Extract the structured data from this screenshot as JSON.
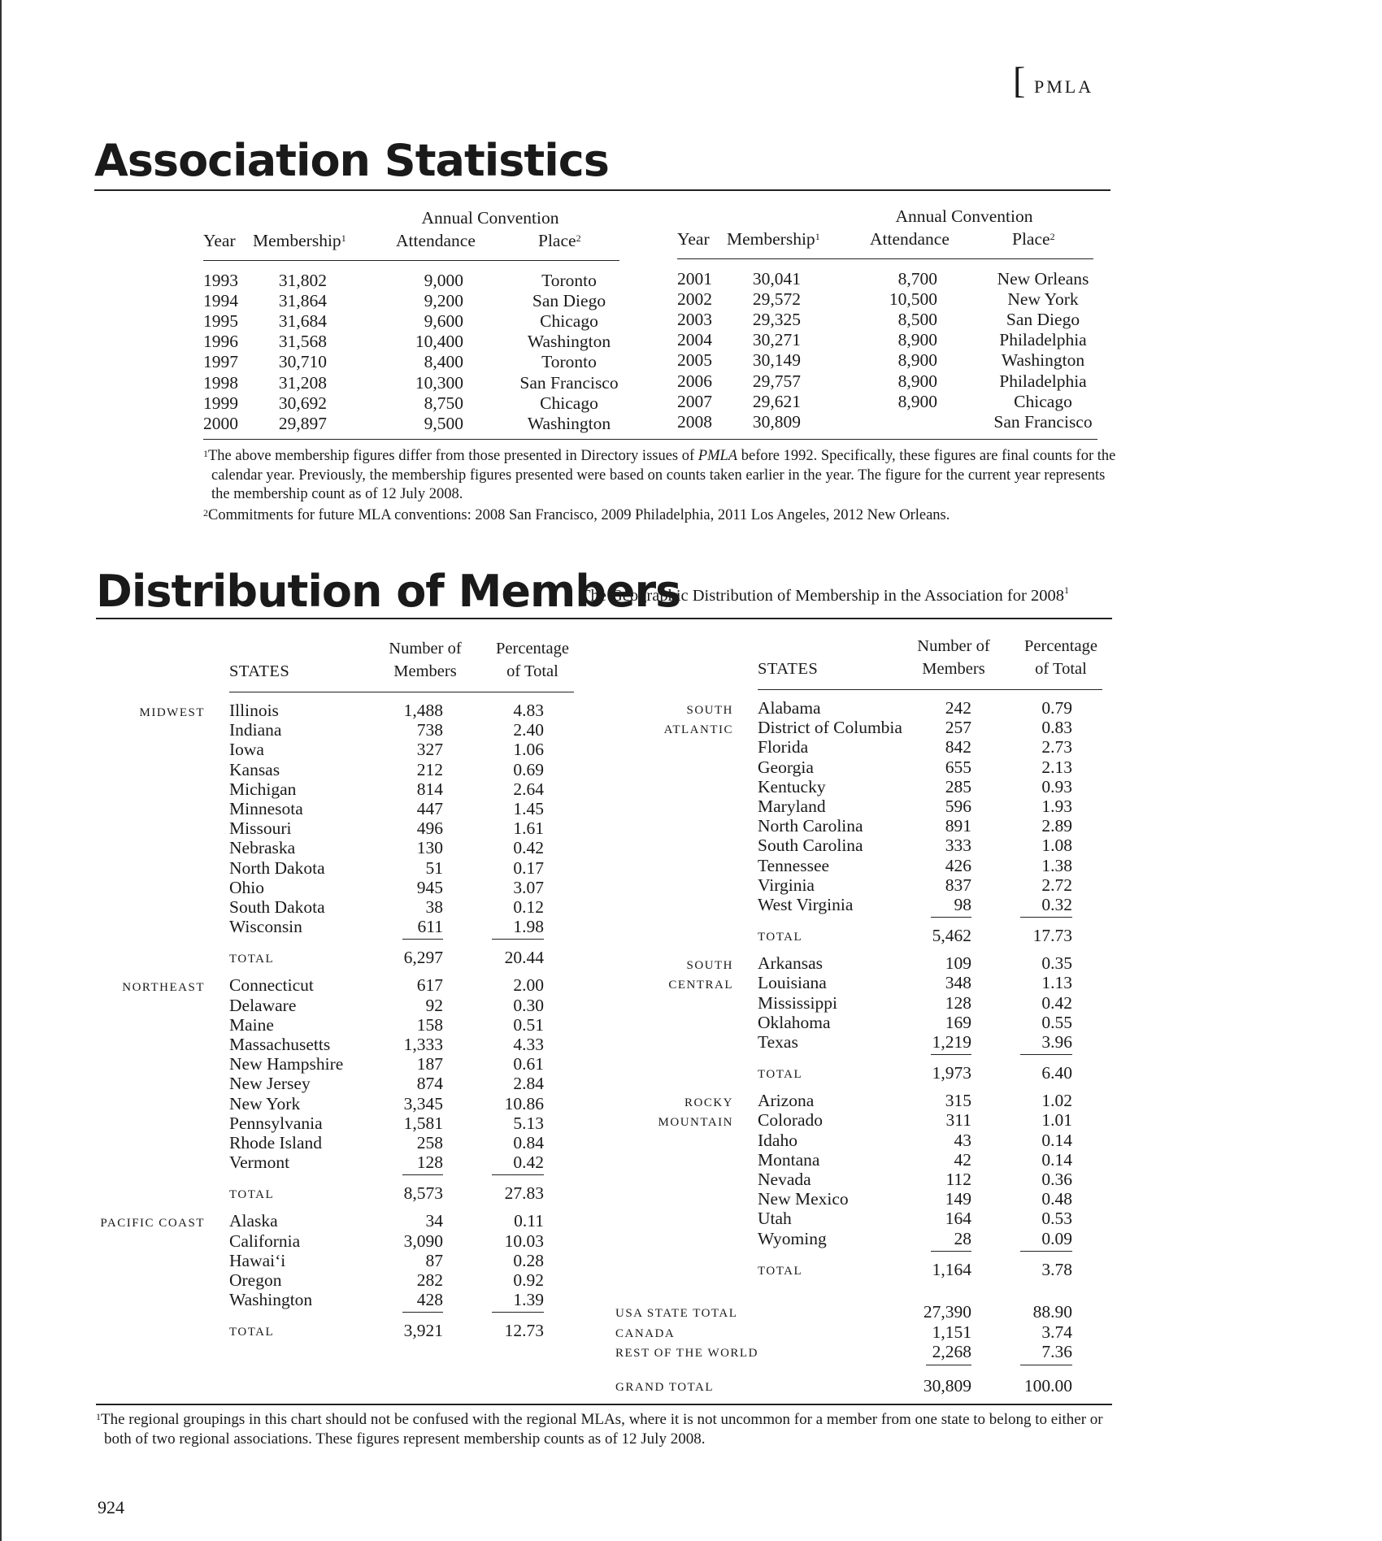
{
  "journal": "PMLA",
  "stats": {
    "title": "Association Statistics",
    "headers": {
      "year": "Year",
      "membership": "Membership",
      "membership_note": "1",
      "annual_convention": "Annual Convention",
      "attendance": "Attendance",
      "place": "Place",
      "place_note": "2"
    },
    "rows_left": [
      {
        "year": "1993",
        "membership": "31,802",
        "attendance": "9,000",
        "place": "Toronto"
      },
      {
        "year": "1994",
        "membership": "31,864",
        "attendance": "9,200",
        "place": "San Diego"
      },
      {
        "year": "1995",
        "membership": "31,684",
        "attendance": "9,600",
        "place": "Chicago"
      },
      {
        "year": "1996",
        "membership": "31,568",
        "attendance": "10,400",
        "place": "Washington"
      },
      {
        "year": "1997",
        "membership": "30,710",
        "attendance": "8,400",
        "place": "Toronto"
      },
      {
        "year": "1998",
        "membership": "31,208",
        "attendance": "10,300",
        "place": "San Francisco"
      },
      {
        "year": "1999",
        "membership": "30,692",
        "attendance": "8,750",
        "place": "Chicago"
      },
      {
        "year": "2000",
        "membership": "29,897",
        "attendance": "9,500",
        "place": "Washington"
      }
    ],
    "rows_right": [
      {
        "year": "2001",
        "membership": "30,041",
        "attendance": "8,700",
        "place": "New Orleans"
      },
      {
        "year": "2002",
        "membership": "29,572",
        "attendance": "10,500",
        "place": "New York"
      },
      {
        "year": "2003",
        "membership": "29,325",
        "attendance": "8,500",
        "place": "San Diego"
      },
      {
        "year": "2004",
        "membership": "30,271",
        "attendance": "8,900",
        "place": "Philadelphia"
      },
      {
        "year": "2005",
        "membership": "30,149",
        "attendance": "8,900",
        "place": "Washington"
      },
      {
        "year": "2006",
        "membership": "29,757",
        "attendance": "8,900",
        "place": "Philadelphia"
      },
      {
        "year": "2007",
        "membership": "29,621",
        "attendance": "8,900",
        "place": "Chicago"
      },
      {
        "year": "2008",
        "membership": "30,809",
        "attendance": "",
        "place": "San Francisco"
      }
    ],
    "footnote1": {
      "num": "1",
      "pre": "The above membership figures differ from those presented in Directory issues of ",
      "italic": "PMLA",
      "post": " before 1992. Specifically, these figures are final counts for the calendar year. Previously, the membership figures presented were based on counts taken earlier in the year. The figure for the current year represents the membership count as of 12 July 2008."
    },
    "footnote2": {
      "num": "2",
      "text": "Commitments for future MLA conventions: 2008 San Francisco, 2009 Philadelphia, 2011 Los Angeles, 2012 New Orleans."
    }
  },
  "dist": {
    "title": "Distribution of Members",
    "subtitle": "The Geographic Distribution of Membership in the Association for 2008",
    "subtitle_note": "1",
    "headers": {
      "states": "STATES",
      "number_of": "Number of",
      "members": "Members",
      "percentage": "Percentage",
      "of_total": "of Total"
    },
    "total_label": "TOTAL",
    "left_regions": [
      {
        "name": [
          "MIDWEST"
        ],
        "rows": [
          {
            "state": "Illinois",
            "members": "1,488",
            "pct": "4.83"
          },
          {
            "state": "Indiana",
            "members": "738",
            "pct": "2.40"
          },
          {
            "state": "Iowa",
            "members": "327",
            "pct": "1.06"
          },
          {
            "state": "Kansas",
            "members": "212",
            "pct": "0.69"
          },
          {
            "state": "Michigan",
            "members": "814",
            "pct": "2.64"
          },
          {
            "state": "Minnesota",
            "members": "447",
            "pct": "1.45"
          },
          {
            "state": "Missouri",
            "members": "496",
            "pct": "1.61"
          },
          {
            "state": "Nebraska",
            "members": "130",
            "pct": "0.42"
          },
          {
            "state": "North Dakota",
            "members": "51",
            "pct": "0.17"
          },
          {
            "state": "Ohio",
            "members": "945",
            "pct": "3.07"
          },
          {
            "state": "South Dakota",
            "members": "38",
            "pct": "0.12"
          },
          {
            "state": "Wisconsin",
            "members": "611",
            "pct": "1.98"
          }
        ],
        "total": {
          "members": "6,297",
          "pct": "20.44"
        }
      },
      {
        "name": [
          "NORTHEAST"
        ],
        "rows": [
          {
            "state": "Connecticut",
            "members": "617",
            "pct": "2.00"
          },
          {
            "state": "Delaware",
            "members": "92",
            "pct": "0.30"
          },
          {
            "state": "Maine",
            "members": "158",
            "pct": "0.51"
          },
          {
            "state": "Massachusetts",
            "members": "1,333",
            "pct": "4.33"
          },
          {
            "state": "New Hampshire",
            "members": "187",
            "pct": "0.61"
          },
          {
            "state": "New Jersey",
            "members": "874",
            "pct": "2.84"
          },
          {
            "state": "New York",
            "members": "3,345",
            "pct": "10.86"
          },
          {
            "state": "Pennsylvania",
            "members": "1,581",
            "pct": "5.13"
          },
          {
            "state": "Rhode Island",
            "members": "258",
            "pct": "0.84"
          },
          {
            "state": "Vermont",
            "members": "128",
            "pct": "0.42"
          }
        ],
        "total": {
          "members": "8,573",
          "pct": "27.83"
        }
      },
      {
        "name": [
          "PACIFIC COAST"
        ],
        "rows": [
          {
            "state": "Alaska",
            "members": "34",
            "pct": "0.11"
          },
          {
            "state": "California",
            "members": "3,090",
            "pct": "10.03"
          },
          {
            "state": "Hawai‘i",
            "members": "87",
            "pct": "0.28"
          },
          {
            "state": "Oregon",
            "members": "282",
            "pct": "0.92"
          },
          {
            "state": "Washington",
            "members": "428",
            "pct": "1.39"
          }
        ],
        "total": {
          "members": "3,921",
          "pct": "12.73"
        }
      }
    ],
    "right_regions": [
      {
        "name": [
          "SOUTH",
          "ATLANTIC"
        ],
        "rows": [
          {
            "state": "Alabama",
            "members": "242",
            "pct": "0.79"
          },
          {
            "state": "District of Columbia",
            "members": "257",
            "pct": "0.83"
          },
          {
            "state": "Florida",
            "members": "842",
            "pct": "2.73"
          },
          {
            "state": "Georgia",
            "members": "655",
            "pct": "2.13"
          },
          {
            "state": "Kentucky",
            "members": "285",
            "pct": "0.93"
          },
          {
            "state": "Maryland",
            "members": "596",
            "pct": "1.93"
          },
          {
            "state": "North Carolina",
            "members": "891",
            "pct": "2.89"
          },
          {
            "state": "South Carolina",
            "members": "333",
            "pct": "1.08"
          },
          {
            "state": "Tennessee",
            "members": "426",
            "pct": "1.38"
          },
          {
            "state": "Virginia",
            "members": "837",
            "pct": "2.72"
          },
          {
            "state": "West Virginia",
            "members": "98",
            "pct": "0.32"
          }
        ],
        "total": {
          "members": "5,462",
          "pct": "17.73"
        }
      },
      {
        "name": [
          "SOUTH",
          "CENTRAL"
        ],
        "rows": [
          {
            "state": "Arkansas",
            "members": "109",
            "pct": "0.35"
          },
          {
            "state": "Louisiana",
            "members": "348",
            "pct": "1.13"
          },
          {
            "state": "Mississippi",
            "members": "128",
            "pct": "0.42"
          },
          {
            "state": "Oklahoma",
            "members": "169",
            "pct": "0.55"
          },
          {
            "state": "Texas",
            "members": "1,219",
            "pct": "3.96"
          }
        ],
        "total": {
          "members": "1,973",
          "pct": "6.40"
        }
      },
      {
        "name": [
          "ROCKY",
          "MOUNTAIN"
        ],
        "rows": [
          {
            "state": "Arizona",
            "members": "315",
            "pct": "1.02"
          },
          {
            "state": "Colorado",
            "members": "311",
            "pct": "1.01"
          },
          {
            "state": "Idaho",
            "members": "43",
            "pct": "0.14"
          },
          {
            "state": "Montana",
            "members": "42",
            "pct": "0.14"
          },
          {
            "state": "Nevada",
            "members": "112",
            "pct": "0.36"
          },
          {
            "state": "New Mexico",
            "members": "149",
            "pct": "0.48"
          },
          {
            "state": "Utah",
            "members": "164",
            "pct": "0.53"
          },
          {
            "state": "Wyoming",
            "members": "28",
            "pct": "0.09"
          }
        ],
        "total": {
          "members": "1,164",
          "pct": "3.78"
        }
      }
    ],
    "summary": [
      {
        "label": "USA STATE TOTAL",
        "members": "27,390",
        "pct": "88.90"
      },
      {
        "label": "CANADA",
        "members": "1,151",
        "pct": "3.74"
      },
      {
        "label": "REST OF THE WORLD",
        "members": "2,268",
        "pct": "7.36"
      }
    ],
    "grand_total": {
      "label": "GRAND TOTAL",
      "members": "30,809",
      "pct": "100.00"
    },
    "footnote": {
      "num": "1",
      "text": "The regional groupings in this chart should not be confused with the regional MLAs, where it is not uncommon for a member from one state to belong to either or both of two regional associations. These figures represent membership counts as of 12 July 2008."
    }
  },
  "page_number": "924"
}
